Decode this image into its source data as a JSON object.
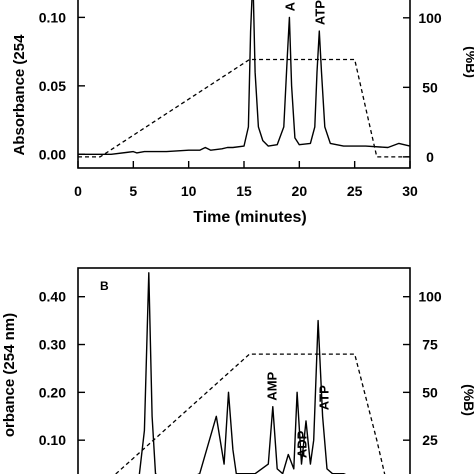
{
  "chart_data": [
    {
      "type": "line",
      "panel_label": "",
      "xlabel": "Time (minutes)",
      "ylabel": "Absorbance (254",
      "y2label": "(%B)",
      "xlim": [
        0,
        30
      ],
      "ylim": [
        -0.01,
        0.12
      ],
      "y2lim": [
        -8,
        120
      ],
      "xticks": [
        0,
        5,
        10,
        15,
        20,
        25,
        30
      ],
      "yticks": [
        "0.00",
        "0.05",
        "0.10"
      ],
      "y2ticks": [
        "0",
        "50",
        "100"
      ],
      "annotations": [
        {
          "text": "A",
          "x": 19.1
        },
        {
          "text": "ATP",
          "x": 21.8
        }
      ],
      "series": [
        {
          "style": "solid",
          "x": [
            0,
            3,
            5,
            5.3,
            6,
            8,
            10,
            11,
            11.5,
            12,
            13,
            13.5,
            14,
            15,
            15.4,
            15.6,
            15.8,
            16.0,
            16.3,
            16.7,
            17.2,
            18.0,
            18.6,
            18.9,
            19.1,
            19.3,
            19.6,
            20.0,
            21.0,
            21.4,
            21.6,
            21.8,
            22.0,
            22.3,
            22.8,
            24.0,
            26.0,
            28.0,
            29.0,
            30.0
          ],
          "y": [
            0.0,
            0.0,
            0.002,
            0.001,
            0.002,
            0.002,
            0.003,
            0.003,
            0.005,
            0.003,
            0.004,
            0.005,
            0.005,
            0.006,
            0.02,
            0.09,
            0.13,
            0.06,
            0.02,
            0.01,
            0.006,
            0.007,
            0.02,
            0.07,
            0.1,
            0.05,
            0.012,
            0.007,
            0.008,
            0.02,
            0.06,
            0.09,
            0.06,
            0.02,
            0.008,
            0.006,
            0.006,
            0.005,
            0.008,
            0.006
          ]
        },
        {
          "style": "dashed",
          "axis": "right",
          "x": [
            0,
            2,
            15.5,
            25,
            27,
            30
          ],
          "y": [
            0,
            0,
            70,
            70,
            0,
            0
          ]
        }
      ]
    },
    {
      "type": "line",
      "panel_label": "B",
      "xlabel": "",
      "ylabel": "orbance (254 nm)",
      "y2label": "(%B)",
      "xlim": [
        0,
        30
      ],
      "ylim": [
        0,
        0.46
      ],
      "y2lim": [
        0,
        115
      ],
      "yticks": [
        "0.10",
        "0.20",
        "0.30",
        "0.40"
      ],
      "y2ticks": [
        "25",
        "50",
        "75",
        "100"
      ],
      "annotations": [
        {
          "text": "AMP",
          "x": 17.5
        },
        {
          "text": "ADP",
          "x": 20.2
        },
        {
          "text": "ATP",
          "x": 22.2
        }
      ],
      "series": [
        {
          "style": "solid",
          "x": [
            0,
            4,
            5.5,
            6.0,
            6.4,
            6.7,
            7.0,
            7.5,
            8.5,
            10,
            11,
            12.5,
            13.2,
            13.6,
            14.0,
            14.3,
            14.6,
            15.0,
            16.0,
            17.2,
            17.6,
            18.0,
            18.5,
            19.0,
            19.5,
            19.8,
            20.2,
            20.6,
            21.0,
            21.3,
            21.7,
            22.1,
            22.5,
            23.0,
            24.0,
            25.0,
            26.0,
            27.0,
            28.0
          ],
          "y": [
            0.0,
            0.0,
            0.02,
            0.12,
            0.45,
            0.15,
            0.03,
            0.02,
            0.02,
            0.02,
            0.03,
            0.15,
            0.05,
            0.2,
            0.08,
            0.03,
            0.03,
            0.03,
            0.03,
            0.05,
            0.17,
            0.04,
            0.03,
            0.07,
            0.04,
            0.2,
            0.05,
            0.14,
            0.05,
            0.1,
            0.35,
            0.15,
            0.04,
            0.03,
            0.03,
            0.02,
            0.02,
            0.02,
            0.02
          ]
        },
        {
          "style": "dashed",
          "axis": "right",
          "x": [
            2,
            15.5,
            25,
            27,
            28
          ],
          "y": [
            0,
            70,
            70,
            25,
            0
          ]
        }
      ]
    }
  ]
}
